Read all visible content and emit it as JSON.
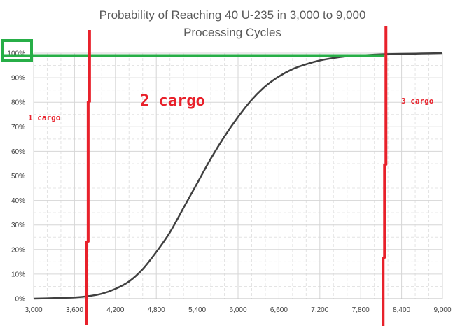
{
  "chart_data": {
    "type": "line",
    "title": "Probability of Reaching 40 U-235 in 3,000 to 9,000",
    "subtitle": "Processing Cycles",
    "xlabel": "",
    "ylabel": "",
    "xlim": [
      3000,
      9000
    ],
    "ylim": [
      0,
      1
    ],
    "grid": true,
    "x_ticks": [
      3000,
      3600,
      4200,
      4800,
      5400,
      6000,
      6600,
      7200,
      7800,
      8400,
      9000
    ],
    "x_tick_labels": [
      "3,000",
      "3,600",
      "4,200",
      "4,800",
      "5,400",
      "6,000",
      "6,600",
      "7,200",
      "7,800",
      "8,400",
      "9,000"
    ],
    "y_ticks": [
      0,
      0.1,
      0.2,
      0.3,
      0.4,
      0.5,
      0.6,
      0.7,
      0.8,
      0.9,
      1.0
    ],
    "y_tick_labels": [
      "0%",
      "10%",
      "20%",
      "30%",
      "40%",
      "50%",
      "60%",
      "70%",
      "80%",
      "90%",
      "100%"
    ],
    "series": [
      {
        "color": "#404040",
        "x": [
          3000,
          3300,
          3600,
          3800,
          4000,
          4200,
          4400,
          4600,
          4800,
          5000,
          5200,
          5400,
          5600,
          5800,
          6000,
          6200,
          6400,
          6600,
          6800,
          7000,
          7200,
          7400,
          7600,
          7800,
          8000,
          8200,
          8400,
          8600,
          8800,
          9000
        ],
        "y": [
          0.0,
          0.002,
          0.005,
          0.01,
          0.02,
          0.04,
          0.07,
          0.12,
          0.19,
          0.27,
          0.37,
          0.47,
          0.57,
          0.66,
          0.74,
          0.81,
          0.865,
          0.905,
          0.935,
          0.955,
          0.97,
          0.98,
          0.987,
          0.991,
          0.994,
          0.996,
          0.997,
          0.998,
          0.999,
          1.0
        ]
      }
    ],
    "annotations": {
      "left_red_line_x": 3800,
      "right_red_line_x": 8150,
      "green_line_y": 0.99,
      "red_color": "#e8212b",
      "green_color": "#27ae47",
      "label_1": "1 cargo",
      "label_2": "2 cargo",
      "label_3": "3 cargo"
    }
  }
}
